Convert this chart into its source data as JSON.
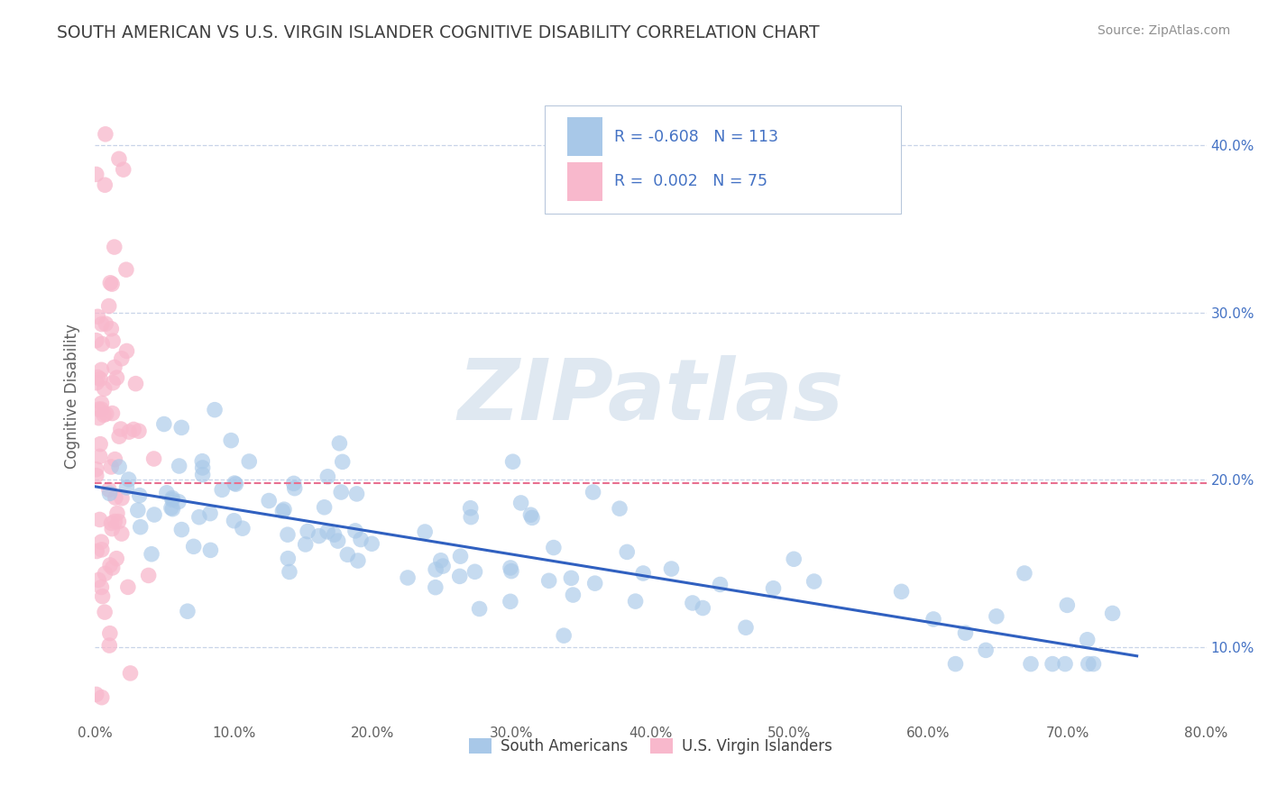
{
  "title": "SOUTH AMERICAN VS U.S. VIRGIN ISLANDER COGNITIVE DISABILITY CORRELATION CHART",
  "source": "Source: ZipAtlas.com",
  "ylabel": "Cognitive Disability",
  "xlim": [
    0.0,
    0.8
  ],
  "ylim": [
    0.055,
    0.445
  ],
  "legend_bottom": [
    "South Americans",
    "U.S. Virgin Islanders"
  ],
  "blue_color": "#a8c8e8",
  "pink_color": "#f8b8cc",
  "trend_blue_color": "#3060c0",
  "trend_pink_color": "#e87090",
  "watermark": "ZIPatlas",
  "blue_R": -0.608,
  "pink_R": 0.002,
  "blue_N": 113,
  "pink_N": 75,
  "background_color": "#ffffff",
  "grid_color": "#c8d4e8",
  "title_color": "#404040",
  "axis_label_color": "#606060",
  "right_tick_color": "#4472c4",
  "legend_text_color": "#4472c4",
  "legend_label_color": "#404040"
}
